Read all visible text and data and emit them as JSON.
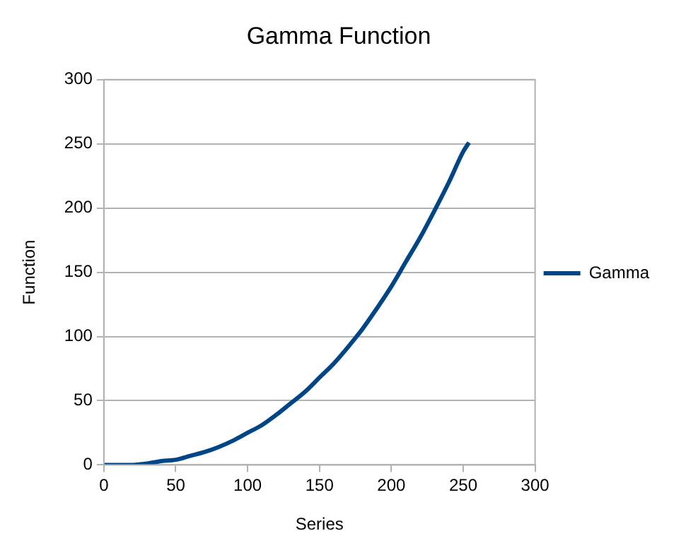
{
  "chart_data": {
    "type": "line",
    "title": "Gamma Function",
    "xlabel": "Series",
    "ylabel": "Function",
    "x": [
      0,
      10,
      20,
      30,
      40,
      50,
      60,
      70,
      80,
      90,
      100,
      110,
      120,
      130,
      140,
      150,
      160,
      170,
      180,
      190,
      200,
      210,
      220,
      230,
      240,
      250,
      254
    ],
    "series": [
      {
        "name": "Gamma",
        "color": "#004586",
        "values": [
          0,
          0,
          0,
          1,
          3,
          4,
          7,
          10,
          14,
          19,
          25,
          31,
          39,
          48,
          57,
          68,
          79,
          92,
          106,
          122,
          139,
          158,
          177,
          198,
          220,
          244,
          251
        ]
      }
    ],
    "xlim": [
      0,
      300
    ],
    "xticks": [
      0,
      50,
      100,
      150,
      200,
      250,
      300
    ],
    "ylim": [
      0,
      300
    ],
    "yticks": [
      0,
      50,
      100,
      150,
      200,
      250,
      300
    ],
    "grid": "y",
    "legend": "right",
    "marker": "none",
    "line_style": "solid"
  }
}
